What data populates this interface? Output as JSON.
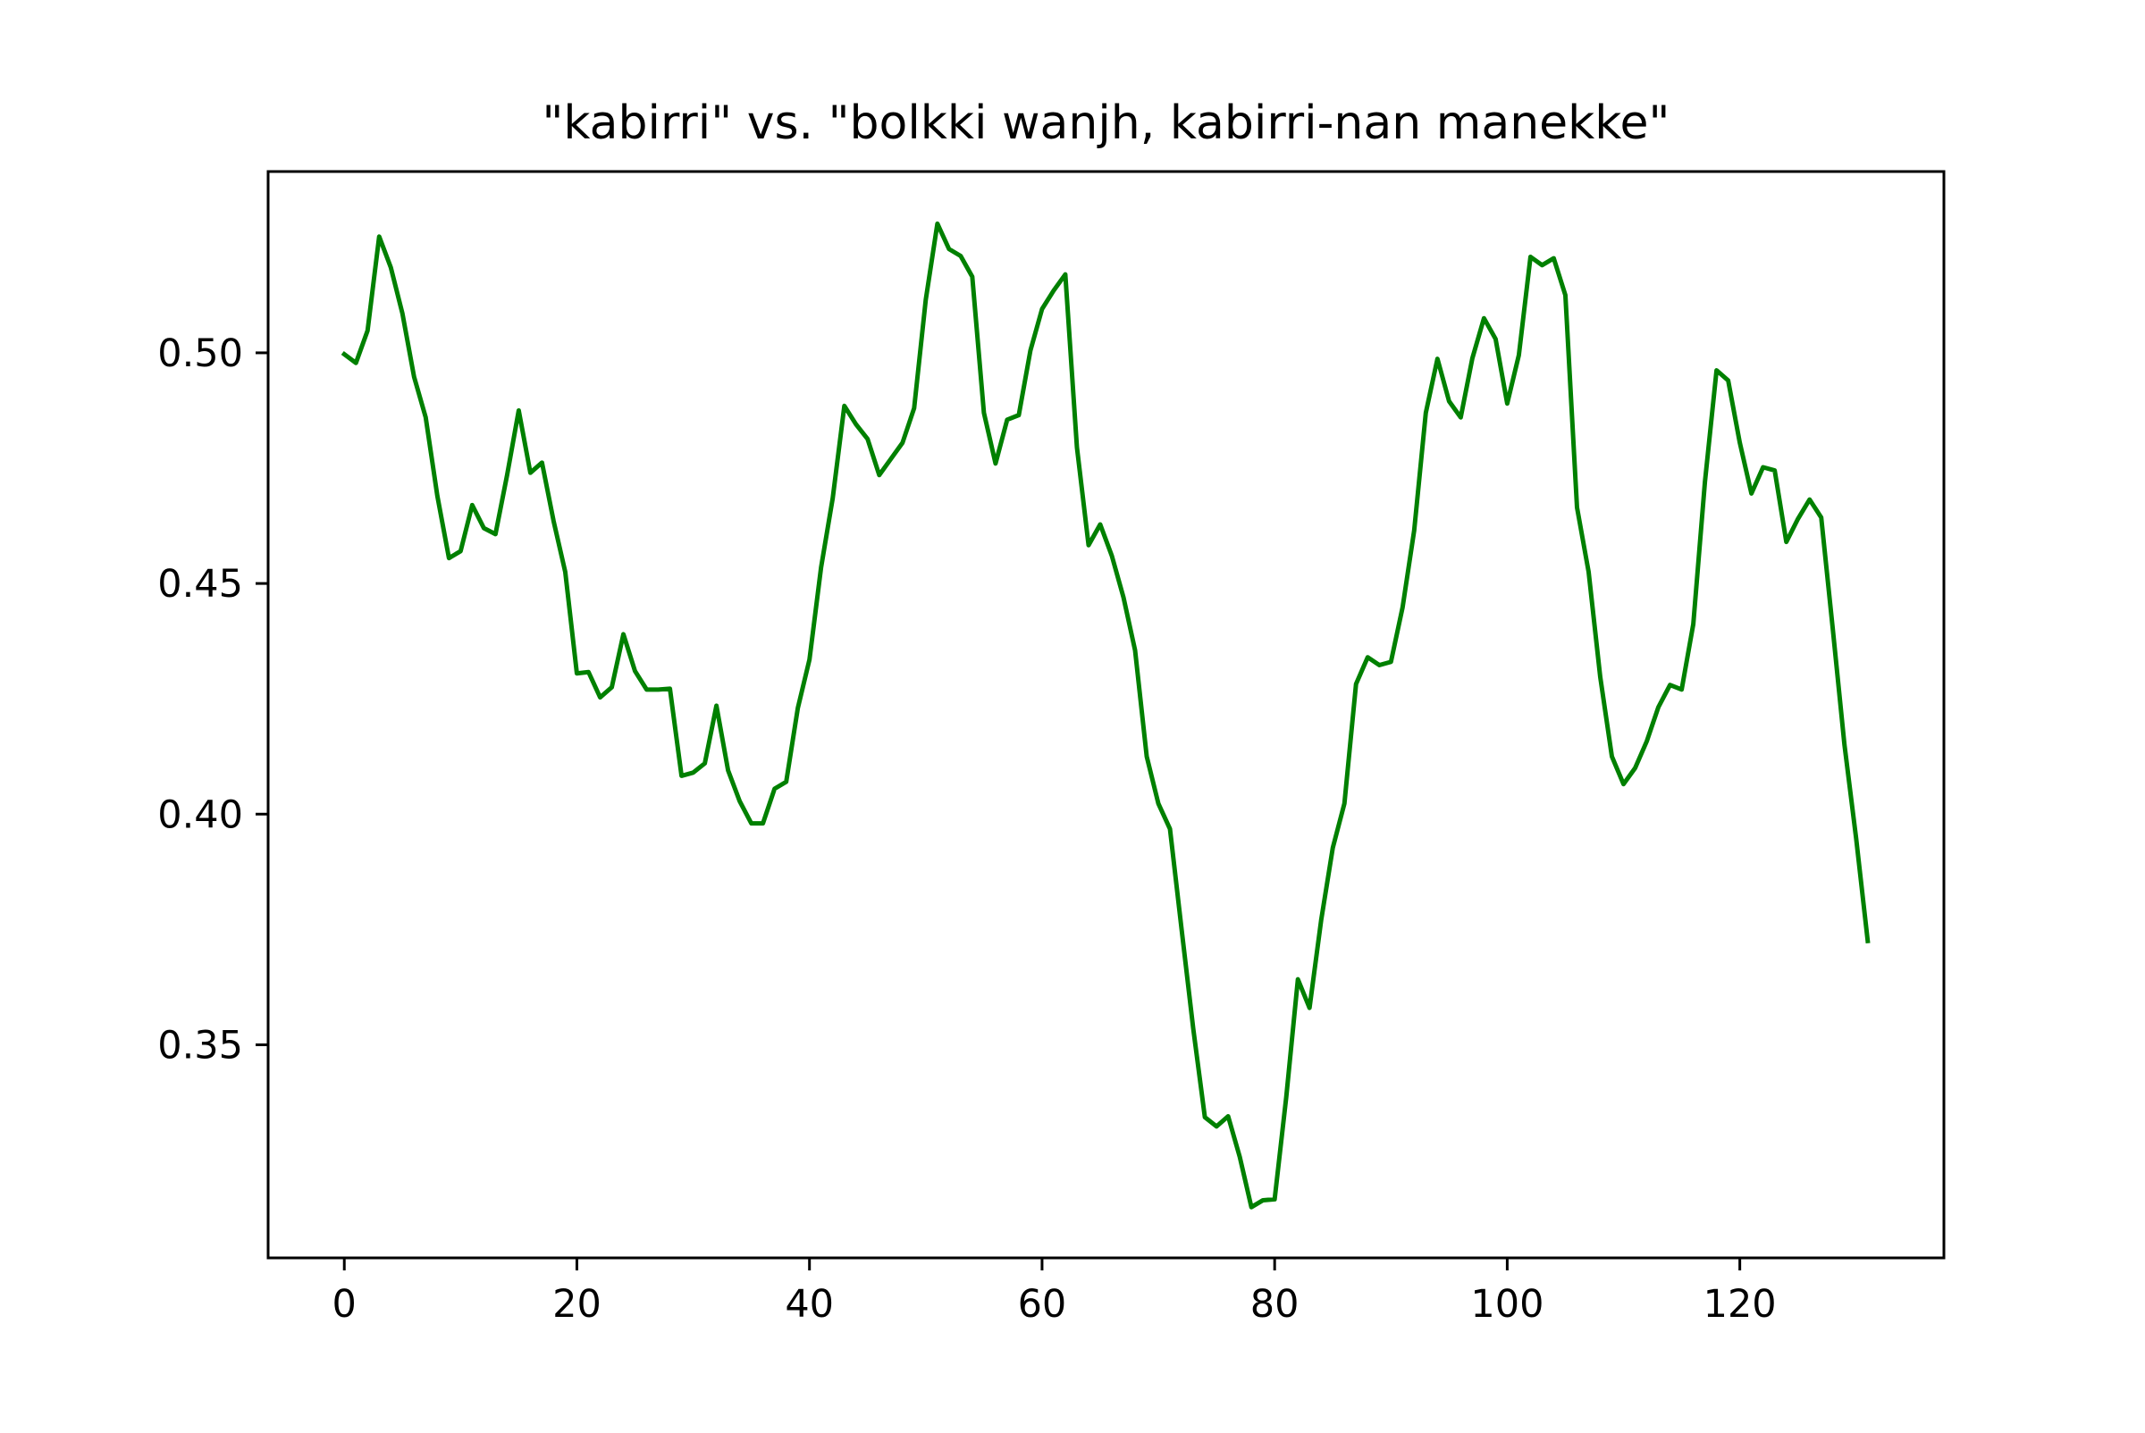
{
  "chart_data": {
    "type": "line",
    "title": "\"kabirri\" vs. \"bolkki wanjh, kabirri-nan manekke\"",
    "xlabel": "",
    "ylabel": "",
    "xlim": [
      -6.55,
      137.55
    ],
    "ylim": [
      0.3038,
      0.5393
    ],
    "xticks": [
      0,
      20,
      40,
      60,
      80,
      100,
      120
    ],
    "xtick_labels": [
      "0",
      "20",
      "40",
      "60",
      "80",
      "100",
      "120"
    ],
    "yticks": [
      0.35,
      0.4,
      0.45,
      0.5
    ],
    "ytick_labels": [
      "0.35",
      "0.40",
      "0.45",
      "0.50"
    ],
    "grid": false,
    "legend": "none",
    "series": [
      {
        "color": "#008000",
        "x": [
          0,
          1,
          2,
          3,
          4,
          5,
          6,
          7,
          8,
          9,
          10,
          11,
          12,
          13,
          14,
          15,
          16,
          17,
          18,
          19,
          20,
          21,
          22,
          23,
          24,
          25,
          26,
          27,
          28,
          29,
          30,
          31,
          32,
          33,
          34,
          35,
          36,
          37,
          38,
          39,
          40,
          41,
          42,
          43,
          44,
          45,
          46,
          47,
          48,
          49,
          50,
          51,
          52,
          53,
          54,
          55,
          56,
          57,
          58,
          59,
          60,
          61,
          62,
          63,
          64,
          65,
          66,
          67,
          68,
          69,
          70,
          71,
          72,
          73,
          74,
          75,
          76,
          77,
          78,
          79,
          80,
          81,
          82,
          83,
          84,
          85,
          86,
          87,
          88,
          89,
          90,
          91,
          92,
          93,
          94,
          95,
          96,
          97,
          98,
          99,
          100,
          101,
          102,
          103,
          104,
          105,
          106,
          107,
          108,
          109,
          110,
          111,
          112,
          113,
          114,
          115,
          116,
          117,
          118,
          119,
          120,
          121,
          122,
          123,
          124,
          125,
          126,
          127,
          128,
          129,
          130,
          131
        ],
        "values": [
          0.4997,
          0.4978,
          0.5048,
          0.5252,
          0.5185,
          0.5085,
          0.4948,
          0.486,
          0.469,
          0.4555,
          0.457,
          0.467,
          0.462,
          0.4607,
          0.4735,
          0.4875,
          0.474,
          0.4762,
          0.4635,
          0.4525,
          0.4305,
          0.4308,
          0.4253,
          0.4275,
          0.439,
          0.431,
          0.427,
          0.427,
          0.4272,
          0.4083,
          0.409,
          0.411,
          0.4235,
          0.4095,
          0.4028,
          0.398,
          0.398,
          0.4055,
          0.407,
          0.423,
          0.4335,
          0.4535,
          0.4685,
          0.4885,
          0.4845,
          0.4813,
          0.4735,
          0.477,
          0.4805,
          0.488,
          0.5115,
          0.528,
          0.5225,
          0.521,
          0.5165,
          0.487,
          0.476,
          0.4855,
          0.4865,
          0.5005,
          0.5095,
          0.5135,
          0.517,
          0.4795,
          0.4583,
          0.4628,
          0.456,
          0.447,
          0.4355,
          0.4125,
          0.4023,
          0.3968,
          0.375,
          0.3535,
          0.3343,
          0.3323,
          0.3345,
          0.3257,
          0.3148,
          0.3163,
          0.3165,
          0.3387,
          0.3642,
          0.358,
          0.377,
          0.3927,
          0.4023,
          0.4282,
          0.434,
          0.4323,
          0.433,
          0.4448,
          0.4615,
          0.487,
          0.4987,
          0.4895,
          0.486,
          0.4988,
          0.5075,
          0.503,
          0.489,
          0.4995,
          0.5208,
          0.519,
          0.5205,
          0.5125,
          0.4665,
          0.4525,
          0.4297,
          0.4125,
          0.4065,
          0.41,
          0.4158,
          0.4232,
          0.428,
          0.427,
          0.4412,
          0.472,
          0.4962,
          0.494,
          0.4805,
          0.4695,
          0.4752,
          0.4745,
          0.459,
          0.464,
          0.4682,
          0.4643,
          0.44,
          0.415,
          0.3948,
          0.3725
        ]
      }
    ]
  }
}
